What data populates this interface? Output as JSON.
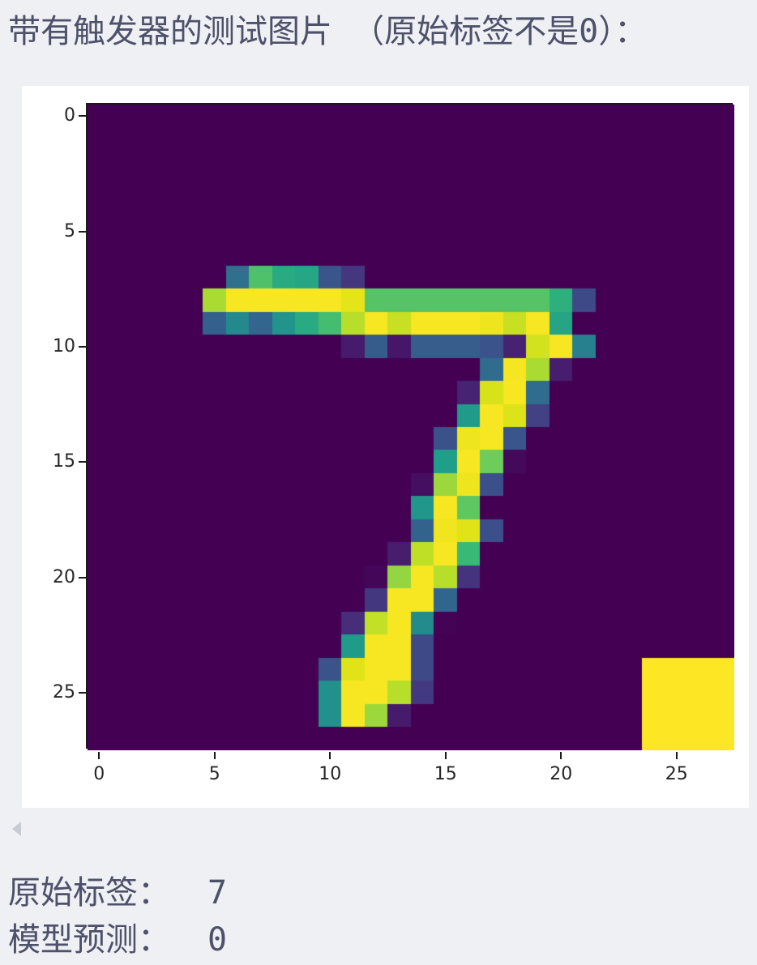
{
  "page": {
    "background": "#eef0f4",
    "text_color": "#4d5169"
  },
  "title": {
    "prefix": "带有触发器的测试图片 （原始标签不是",
    "zero": "0",
    "suffix": "）："
  },
  "results": [
    {
      "label": "原始标签：",
      "value": "7"
    },
    {
      "label": "模型预测：",
      "value": "0"
    }
  ],
  "collapse_marker": {
    "shape": "left-triangle",
    "color": "#c8cbd4"
  },
  "chart_data": {
    "type": "heatmap",
    "title": "",
    "xlabel": "",
    "ylabel": "",
    "colormap": "viridis",
    "grid_size": [
      28,
      28
    ],
    "x_ticks": [
      0,
      5,
      10,
      15,
      20,
      25
    ],
    "y_ticks": [
      0,
      5,
      10,
      15,
      20,
      25
    ],
    "xlim": [
      -0.5,
      27.5
    ],
    "ylim": [
      27.5,
      -0.5
    ],
    "vmin": 0,
    "vmax": 255,
    "background_value": 0,
    "figure_facecolor": "#ffffff",
    "spine_color": "#1a1a1a",
    "tick_label_color": "#262626",
    "viridis_anchors": [
      [
        68,
        1,
        84
      ],
      [
        72,
        40,
        120
      ],
      [
        62,
        74,
        137
      ],
      [
        49,
        104,
        142
      ],
      [
        38,
        130,
        142
      ],
      [
        31,
        158,
        137
      ],
      [
        53,
        183,
        121
      ],
      [
        109,
        205,
        89
      ],
      [
        181,
        222,
        43
      ],
      [
        223,
        227,
        24
      ],
      [
        253,
        231,
        37
      ]
    ],
    "digit_pixels": {
      "7": {
        "6": 84,
        "7": 165,
        "8": 140,
        "9": 136,
        "10": 60,
        "11": 36
      },
      "8": {
        "5": 200,
        "6": 250,
        "7": 250,
        "8": 250,
        "9": 250,
        "10": 250,
        "11": 235,
        "12": 168,
        "13": 168,
        "14": 168,
        "15": 168,
        "16": 168,
        "17": 168,
        "18": 168,
        "19": 168,
        "20": 145,
        "21": 50
      },
      "9": {
        "5": 70,
        "6": 108,
        "7": 75,
        "8": 118,
        "9": 140,
        "10": 160,
        "11": 205,
        "12": 250,
        "13": 215,
        "14": 250,
        "15": 250,
        "16": 250,
        "17": 242,
        "18": 215,
        "19": 250,
        "20": 135
      },
      "10": {
        "11": 17,
        "12": 66,
        "13": 14,
        "14": 67,
        "15": 67,
        "16": 67,
        "17": 59,
        "18": 21,
        "19": 222,
        "20": 250,
        "21": 100
      },
      "11": {
        "17": 80,
        "18": 248,
        "19": 200,
        "20": 18
      },
      "12": {
        "16": 22,
        "17": 225,
        "18": 250,
        "19": 80
      },
      "13": {
        "16": 125,
        "17": 250,
        "18": 228,
        "19": 44
      },
      "14": {
        "15": 57,
        "16": 242,
        "17": 250,
        "18": 60
      },
      "15": {
        "15": 128,
        "16": 250,
        "17": 178,
        "18": 5
      },
      "16": {
        "14": 9,
        "15": 195,
        "16": 242,
        "17": 56
      },
      "17": {
        "14": 120,
        "15": 250,
        "16": 172
      },
      "18": {
        "14": 72,
        "15": 245,
        "16": 230,
        "17": 55
      },
      "19": {
        "13": 18,
        "14": 210,
        "15": 250,
        "16": 155
      },
      "20": {
        "12": 3,
        "13": 192,
        "14": 250,
        "15": 205,
        "16": 34
      },
      "21": {
        "12": 37,
        "13": 250,
        "14": 250,
        "15": 74
      },
      "22": {
        "11": 30,
        "12": 212,
        "13": 250,
        "14": 110,
        "15": 1
      },
      "23": {
        "11": 125,
        "12": 250,
        "13": 250,
        "14": 50
      },
      "24": {
        "10": 59,
        "11": 230,
        "12": 250,
        "13": 250,
        "14": 50
      },
      "25": {
        "10": 115,
        "11": 250,
        "12": 250,
        "13": 205,
        "14": 38
      },
      "26": {
        "10": 115,
        "11": 250,
        "12": 195,
        "13": 17
      }
    },
    "trigger_patch": {
      "row_start": 24,
      "row_end": 27,
      "col_start": 24,
      "col_end": 27,
      "value": 255
    }
  }
}
